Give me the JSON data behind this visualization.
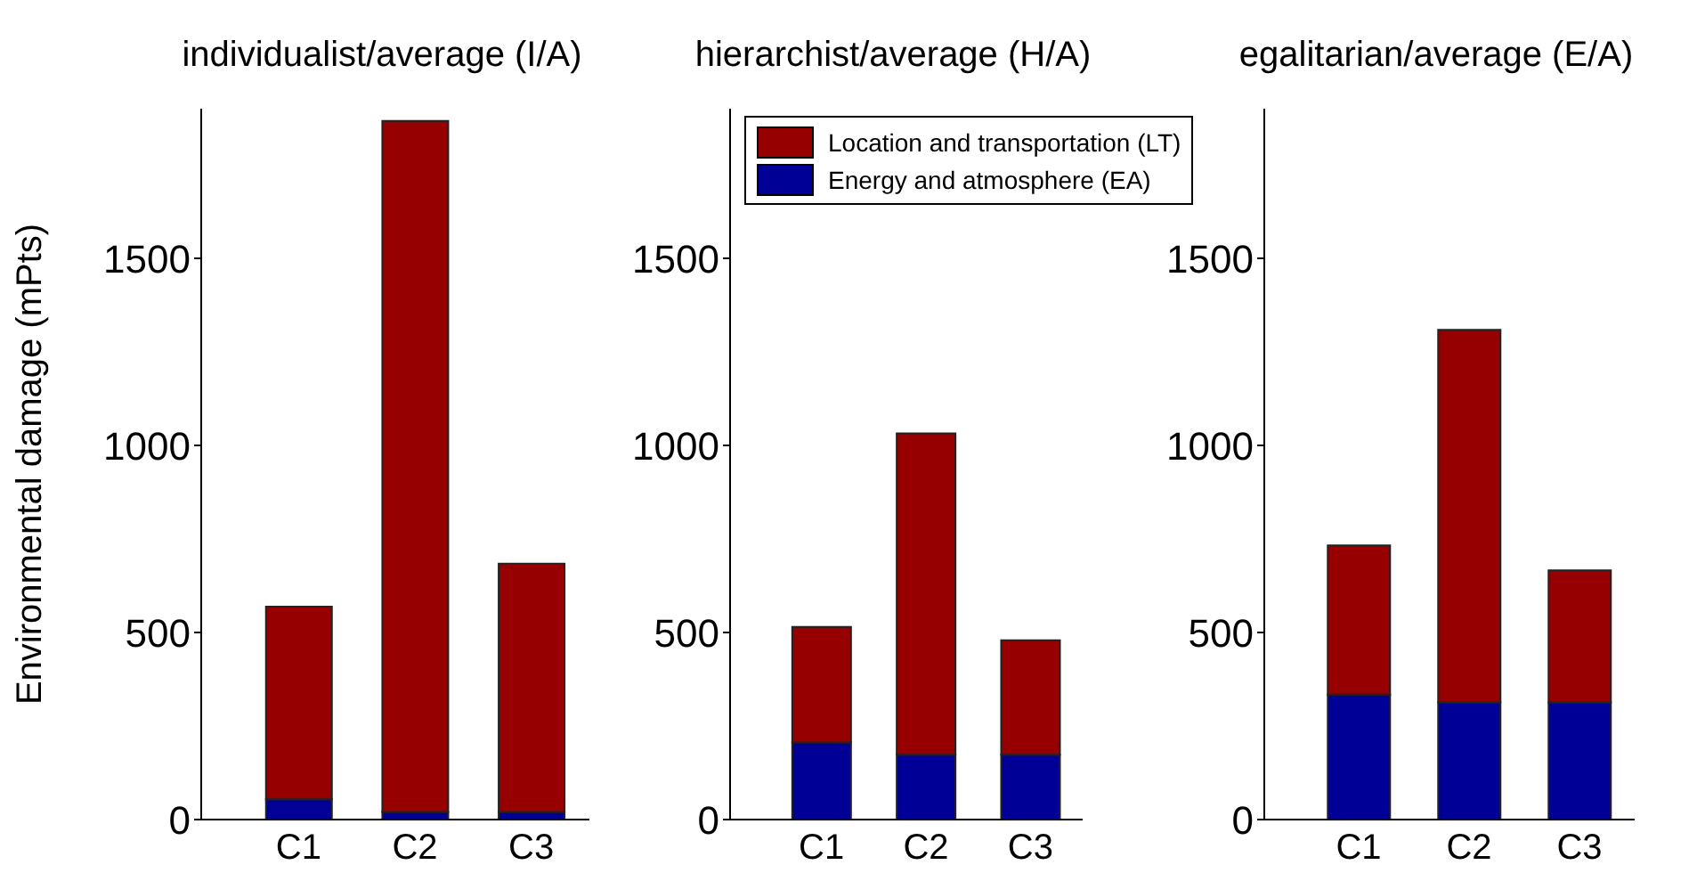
{
  "chart_data": [
    {
      "type": "bar",
      "title": "individualist/average (I/A)",
      "ylabel": "Environmental damage (mPts)",
      "categories": [
        "C1",
        "C2",
        "C3"
      ],
      "stacked": true,
      "ylim": [
        0,
        1900
      ],
      "yticks": [
        0,
        500,
        1000,
        1500
      ],
      "legend": false,
      "series": [
        {
          "color": "#000096",
          "values": [
            54,
            20,
            20
          ]
        },
        {
          "color": "#960000",
          "values": [
            515,
            1847,
            664
          ]
        }
      ]
    },
    {
      "type": "bar",
      "title": "hierarchist/average (H/A)",
      "categories": [
        "C1",
        "C2",
        "C3"
      ],
      "stacked": true,
      "ylim": [
        0,
        1900
      ],
      "yticks": [
        0,
        500,
        1000,
        1500
      ],
      "legend": "top",
      "series": [
        {
          "name": "Energy and atmosphere (EA)",
          "color": "#000096",
          "values": [
            206,
            173,
            173
          ]
        },
        {
          "name": "Location and transportation (LT)",
          "color": "#960000",
          "values": [
            309,
            859,
            306
          ]
        }
      ]
    },
    {
      "type": "bar",
      "title": "egalitarian/average (E/A)",
      "categories": [
        "C1",
        "C2",
        "C3"
      ],
      "stacked": true,
      "ylim": [
        0,
        1900
      ],
      "yticks": [
        0,
        500,
        1000,
        1500
      ],
      "legend": false,
      "series": [
        {
          "color": "#000096",
          "values": [
            334,
            313,
            313
          ]
        },
        {
          "color": "#960000",
          "values": [
            399,
            996,
            353
          ]
        }
      ]
    }
  ]
}
